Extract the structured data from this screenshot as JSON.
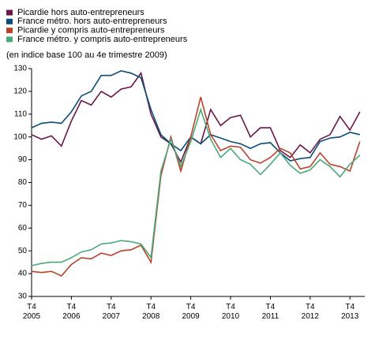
{
  "chart_data": {
    "type": "line",
    "subtitle": "(en indice base 100 au 4e trimestre 2009)",
    "categories": [
      "T4\n2005",
      null,
      null,
      null,
      "T4\n2006",
      null,
      null,
      null,
      "T4\n2007",
      null,
      null,
      null,
      "T4\n2008",
      null,
      null,
      null,
      "T4\n2009",
      null,
      null,
      null,
      "T4\n2010",
      null,
      null,
      null,
      "T4\n2011",
      null,
      null,
      null,
      "T4\n2012",
      null,
      null,
      null,
      "T4\n2013",
      null
    ],
    "series": [
      {
        "name": "Picardie hors auto-entrepreneurs",
        "color": "#6b1747",
        "values": [
          101,
          99,
          100.5,
          96,
          107,
          116,
          114,
          120,
          117.5,
          121,
          122,
          128,
          110,
          100,
          97,
          89,
          100,
          97,
          112,
          105,
          108.5,
          109.5,
          100,
          104,
          104,
          94,
          91,
          96.5,
          93,
          99,
          101,
          109,
          103,
          111
        ]
      },
      {
        "name": "France métro. hors auto-entrepreneurs",
        "color": "#0a4d78",
        "values": [
          104,
          106,
          106.5,
          106,
          111,
          118,
          120,
          127,
          127,
          129,
          128,
          126,
          112,
          101,
          97,
          94,
          100,
          97,
          101,
          99.5,
          98,
          97,
          95,
          97,
          97.5,
          93,
          89.5,
          90.5,
          91,
          98,
          99.5,
          100,
          102,
          101
        ]
      },
      {
        "name": "Picardie y compris auto-entrepreneurs",
        "color": "#b8432a",
        "values": [
          41,
          40.5,
          41,
          39,
          44,
          47,
          46.5,
          49,
          48,
          50,
          50.5,
          52.5,
          45,
          83,
          100,
          85,
          100,
          117.5,
          101,
          94,
          96,
          95.5,
          90,
          88.5,
          91,
          95,
          93,
          86,
          87,
          93,
          88,
          87,
          85,
          98
        ]
      },
      {
        "name": "France métro. y compris auto-entrepreneurs",
        "color": "#4aa97a",
        "values": [
          43.5,
          44.5,
          45,
          45,
          47,
          49.5,
          50.5,
          53,
          53.5,
          54.5,
          54,
          53,
          47,
          85,
          99,
          87,
          98,
          112,
          99,
          91,
          95,
          90,
          88,
          83.5,
          88,
          93,
          87.5,
          84,
          85.5,
          90,
          87,
          82.5,
          88,
          92
        ]
      }
    ],
    "ylim": [
      30,
      130
    ],
    "yticks": [
      30,
      40,
      50,
      60,
      70,
      80,
      90,
      100,
      110,
      120,
      130
    ],
    "grid": false
  }
}
